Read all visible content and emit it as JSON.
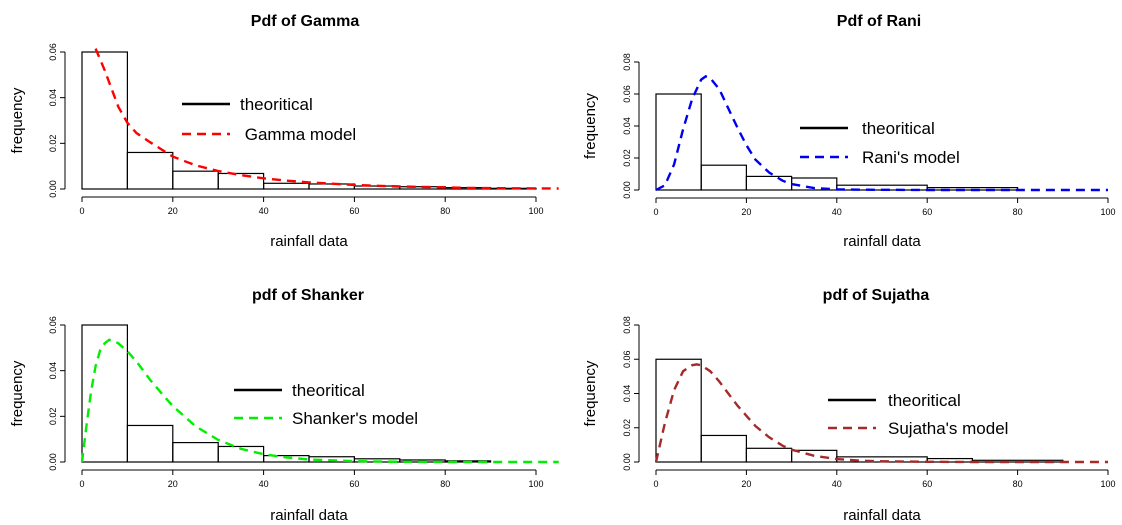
{
  "colors": {
    "theoretical": "#000000",
    "gamma": "#ff0000",
    "rani": "#0000ee",
    "shanker": "#00ee00",
    "sujatha": "#a52a2a"
  },
  "chart_data": [
    {
      "type": "bar",
      "title": "Pdf of Gamma",
      "xlabel": "rainfall data",
      "ylabel": "frequency",
      "xlim": [
        0,
        100
      ],
      "ylim": [
        0,
        0.06
      ],
      "xticks": [
        "0",
        "20",
        "40",
        "60",
        "80",
        "100"
      ],
      "yticks": [
        "0.00",
        "0.02",
        "0.04",
        "0.06"
      ],
      "bins": [
        [
          0,
          10
        ],
        [
          10,
          20
        ],
        [
          20,
          30
        ],
        [
          30,
          40
        ],
        [
          40,
          50
        ],
        [
          50,
          60
        ],
        [
          60,
          70
        ],
        [
          70,
          80
        ],
        [
          80,
          90
        ],
        [
          90,
          100
        ]
      ],
      "values": [
        0.06,
        0.016,
        0.0078,
        0.0068,
        0.0025,
        0.0022,
        0.0013,
        0.001,
        0.0006,
        0.0003
      ],
      "model": {
        "name": "Gamma model",
        "color": "#ff0000",
        "x": [
          3,
          5,
          8,
          10,
          12,
          15,
          20,
          25,
          30,
          35,
          40,
          45,
          50,
          55,
          60,
          65,
          70,
          75,
          80,
          85,
          90,
          95,
          100,
          105
        ],
        "y": [
          0.0615,
          0.052,
          0.036,
          0.029,
          0.0245,
          0.0205,
          0.0142,
          0.0104,
          0.0079,
          0.0061,
          0.0047,
          0.0037,
          0.0029,
          0.0023,
          0.0018,
          0.0014,
          0.0011,
          0.0009,
          0.0007,
          0.0005,
          0.0004,
          0.0003,
          0.00025,
          0.0002
        ]
      },
      "legend": [
        "theoritical",
        " Gamma model"
      ],
      "legend_position": "center-right",
      "grid": false
    },
    {
      "type": "bar",
      "title": "Pdf of Rani",
      "xlabel": "rainfall data",
      "ylabel": "frequency",
      "xlim": [
        0,
        100
      ],
      "ylim": [
        0,
        0.08
      ],
      "xticks": [
        "0",
        "20",
        "40",
        "60",
        "80",
        "100"
      ],
      "yticks": [
        "0.00",
        "0.02",
        "0.04",
        "0.06",
        "0.08"
      ],
      "bins": [
        [
          0,
          10
        ],
        [
          10,
          20
        ],
        [
          20,
          30
        ],
        [
          30,
          40
        ],
        [
          40,
          60
        ],
        [
          60,
          80
        ]
      ],
      "values": [
        0.06,
        0.0155,
        0.0085,
        0.0075,
        0.003,
        0.0015
      ],
      "model": {
        "name": "Rani's model",
        "color": "#0000ee",
        "x": [
          0,
          2,
          4,
          6,
          8,
          10,
          11,
          12,
          14,
          16,
          18,
          20,
          22,
          25,
          28,
          30,
          35,
          40,
          45,
          50,
          60,
          70,
          80,
          90,
          100
        ],
        "y": [
          0,
          0.003,
          0.016,
          0.038,
          0.057,
          0.069,
          0.071,
          0.07,
          0.063,
          0.051,
          0.039,
          0.028,
          0.019,
          0.011,
          0.0058,
          0.0037,
          0.0012,
          0.0004,
          0.0002,
          0.0001,
          0,
          0,
          0,
          0,
          0
        ]
      },
      "legend": [
        "theoritical",
        "Rani's model"
      ],
      "legend_position": "center-right",
      "grid": false
    },
    {
      "type": "bar",
      "title": "pdf of Shanker",
      "xlabel": "rainfall data",
      "ylabel": "frequency",
      "xlim": [
        0,
        100
      ],
      "ylim": [
        0,
        0.06
      ],
      "xticks": [
        "0",
        "20",
        "40",
        "60",
        "80",
        "100"
      ],
      "yticks": [
        "0.00",
        "0.02",
        "0.04",
        "0.06"
      ],
      "bins": [
        [
          0,
          10
        ],
        [
          10,
          20
        ],
        [
          20,
          30
        ],
        [
          30,
          40
        ],
        [
          40,
          50
        ],
        [
          50,
          60
        ],
        [
          60,
          70
        ],
        [
          70,
          80
        ],
        [
          80,
          90
        ]
      ],
      "values": [
        0.06,
        0.016,
        0.0085,
        0.0068,
        0.0028,
        0.0023,
        0.0014,
        0.0009,
        0.0005
      ],
      "model": {
        "name": "Shanker's model",
        "color": "#00ee00",
        "x": [
          0,
          1,
          2,
          3,
          4,
          5,
          6,
          7,
          8,
          10,
          12,
          15,
          18,
          20,
          25,
          30,
          35,
          40,
          45,
          50,
          60,
          70,
          80,
          90,
          100,
          105
        ],
        "y": [
          0,
          0.016,
          0.031,
          0.042,
          0.049,
          0.052,
          0.0535,
          0.053,
          0.052,
          0.0485,
          0.044,
          0.036,
          0.029,
          0.0245,
          0.0157,
          0.0097,
          0.0058,
          0.0034,
          0.002,
          0.0011,
          0.0004,
          0.0001,
          0,
          0,
          0,
          0
        ]
      },
      "legend": [
        "theoritical",
        "Shanker's model"
      ],
      "legend_position": "center-right",
      "grid": false
    },
    {
      "type": "bar",
      "title": "pdf of Sujatha",
      "xlabel": "rainfall data",
      "ylabel": "frequency",
      "xlim": [
        0,
        100
      ],
      "ylim": [
        0,
        0.08
      ],
      "xticks": [
        "0",
        "20",
        "40",
        "60",
        "80",
        "100"
      ],
      "yticks": [
        "0.00",
        "0.02",
        "0.04",
        "0.06",
        "0.08"
      ],
      "bins": [
        [
          0,
          10
        ],
        [
          10,
          20
        ],
        [
          20,
          30
        ],
        [
          30,
          40
        ],
        [
          40,
          60
        ],
        [
          60,
          70
        ],
        [
          70,
          90
        ]
      ],
      "values": [
        0.06,
        0.0155,
        0.008,
        0.0068,
        0.003,
        0.002,
        0.001
      ],
      "model": {
        "name": "Sujatha's model",
        "color": "#a52a2a",
        "x": [
          0,
          2,
          4,
          6,
          8,
          9,
          10,
          12,
          14,
          16,
          18,
          20,
          22,
          25,
          28,
          30,
          35,
          40,
          45,
          50,
          60,
          70,
          80,
          90,
          100
        ],
        "y": [
          0,
          0.023,
          0.042,
          0.053,
          0.0565,
          0.057,
          0.0565,
          0.053,
          0.047,
          0.04,
          0.033,
          0.027,
          0.021,
          0.0145,
          0.0095,
          0.0072,
          0.0036,
          0.0017,
          0.0008,
          0.0004,
          0.0001,
          0,
          0,
          0,
          0
        ]
      },
      "legend": [
        "theoritical",
        "Sujatha's model"
      ],
      "legend_position": "center-right",
      "grid": false
    }
  ]
}
